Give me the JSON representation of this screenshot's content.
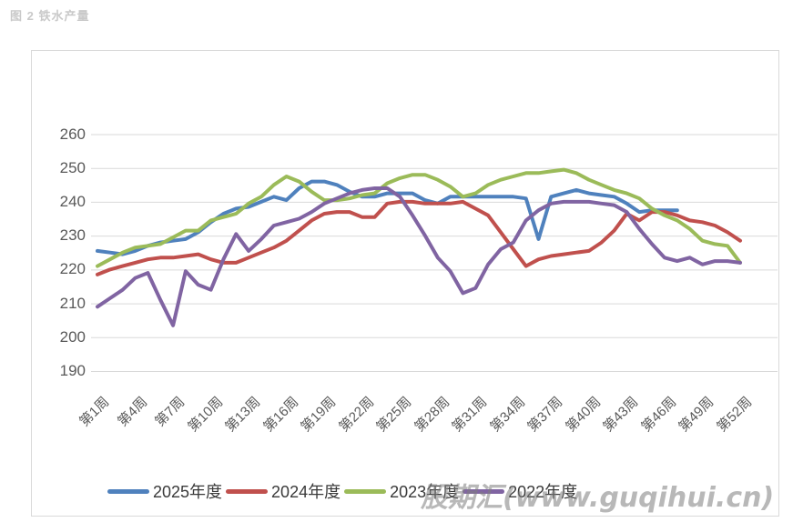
{
  "figure": {
    "title": "图 2 铁水产量"
  },
  "watermark": {
    "text": "股期汇(www.guqihui.cn)"
  },
  "chart_data": {
    "type": "line",
    "title": "铁水产量",
    "xlabel": "",
    "ylabel": "",
    "ylim": [
      190,
      260
    ],
    "yticks": [
      190,
      200,
      210,
      220,
      230,
      240,
      250,
      260
    ],
    "grid": "horizontal",
    "legend_position": "bottom",
    "x_tick_labels": [
      {
        "week": 1,
        "label": "第1周"
      },
      {
        "week": 4,
        "label": "第4周"
      },
      {
        "week": 7,
        "label": "第7周"
      },
      {
        "week": 10,
        "label": "第10周"
      },
      {
        "week": 13,
        "label": "第13周"
      },
      {
        "week": 16,
        "label": "第16周"
      },
      {
        "week": 19,
        "label": "第19周"
      },
      {
        "week": 22,
        "label": "第22周"
      },
      {
        "week": 25,
        "label": "第25周"
      },
      {
        "week": 28,
        "label": "第28周"
      },
      {
        "week": 31,
        "label": "第31周"
      },
      {
        "week": 34,
        "label": "第34周"
      },
      {
        "week": 37,
        "label": "第37周"
      },
      {
        "week": 40,
        "label": "第40周"
      },
      {
        "week": 43,
        "label": "第43周"
      },
      {
        "week": 46,
        "label": "第46周"
      },
      {
        "week": 49,
        "label": "第49周"
      },
      {
        "week": 52,
        "label": "第52周"
      }
    ],
    "series": [
      {
        "name": "2025年度",
        "color": "#4F81BD",
        "start_week": 1,
        "values": [
          225.5,
          225,
          224.5,
          225.5,
          227,
          228,
          228.5,
          229,
          231,
          234,
          236.5,
          238,
          238.5,
          240,
          241.5,
          240.5,
          244,
          246,
          246,
          245,
          243,
          241.5,
          241.5,
          242.5,
          242.5,
          242.5,
          240.5,
          239.5,
          241.5,
          241.5,
          241.5,
          241.5,
          241.5,
          241.5,
          241,
          229,
          241.5,
          242.5,
          243.5,
          242.5,
          242,
          241.5,
          239.5,
          237,
          237.5,
          237.5,
          237.5
        ]
      },
      {
        "name": "2024年度",
        "color": "#C0504D",
        "start_week": 1,
        "values": [
          218.5,
          220,
          221,
          222,
          223,
          223.5,
          223.5,
          224,
          224.5,
          223,
          222,
          222,
          223.5,
          225,
          226.5,
          228.5,
          231.5,
          234.5,
          236.5,
          237,
          237,
          235.5,
          235.5,
          239.5,
          240,
          240,
          239.5,
          239.5,
          239.5,
          240,
          238,
          236,
          231,
          226,
          221,
          223,
          224,
          224.5,
          225,
          225.5,
          228,
          231.5,
          236.5,
          234.5,
          237,
          237,
          236,
          234.5,
          234,
          233,
          231,
          228.5
        ]
      },
      {
        "name": "2023年度",
        "color": "#9BBB59",
        "start_week": 1,
        "values": [
          221,
          223,
          225,
          226.5,
          227,
          227.5,
          229.5,
          231.5,
          231.5,
          234.5,
          235.5,
          236.5,
          239.5,
          241.5,
          245,
          247.5,
          246,
          243,
          240.5,
          240.5,
          241,
          242,
          242.5,
          245.5,
          247,
          248,
          248,
          246.5,
          244.5,
          241.5,
          242.5,
          245,
          246.5,
          247.5,
          248.5,
          248.5,
          249,
          249.5,
          248.5,
          246.5,
          245,
          243.5,
          242.5,
          241,
          238,
          236,
          234.5,
          232,
          228.5,
          227.5,
          227,
          222
        ]
      },
      {
        "name": "2022年度",
        "color": "#8064A2",
        "start_week": 1,
        "values": [
          209,
          211.5,
          214,
          217.5,
          219,
          211,
          203.5,
          219.5,
          215.5,
          214,
          223,
          230.5,
          225.5,
          229,
          233,
          234,
          235,
          237,
          239.5,
          241,
          242.5,
          243.5,
          244,
          244,
          241.5,
          236,
          230,
          223.5,
          219.5,
          213,
          214.5,
          221.5,
          226,
          228,
          234.5,
          237.5,
          239.5,
          240,
          240,
          240,
          239.5,
          239,
          237,
          232,
          227.5,
          223.5,
          222.5,
          223.5,
          221.5,
          222.5,
          222.5,
          222
        ]
      }
    ]
  }
}
